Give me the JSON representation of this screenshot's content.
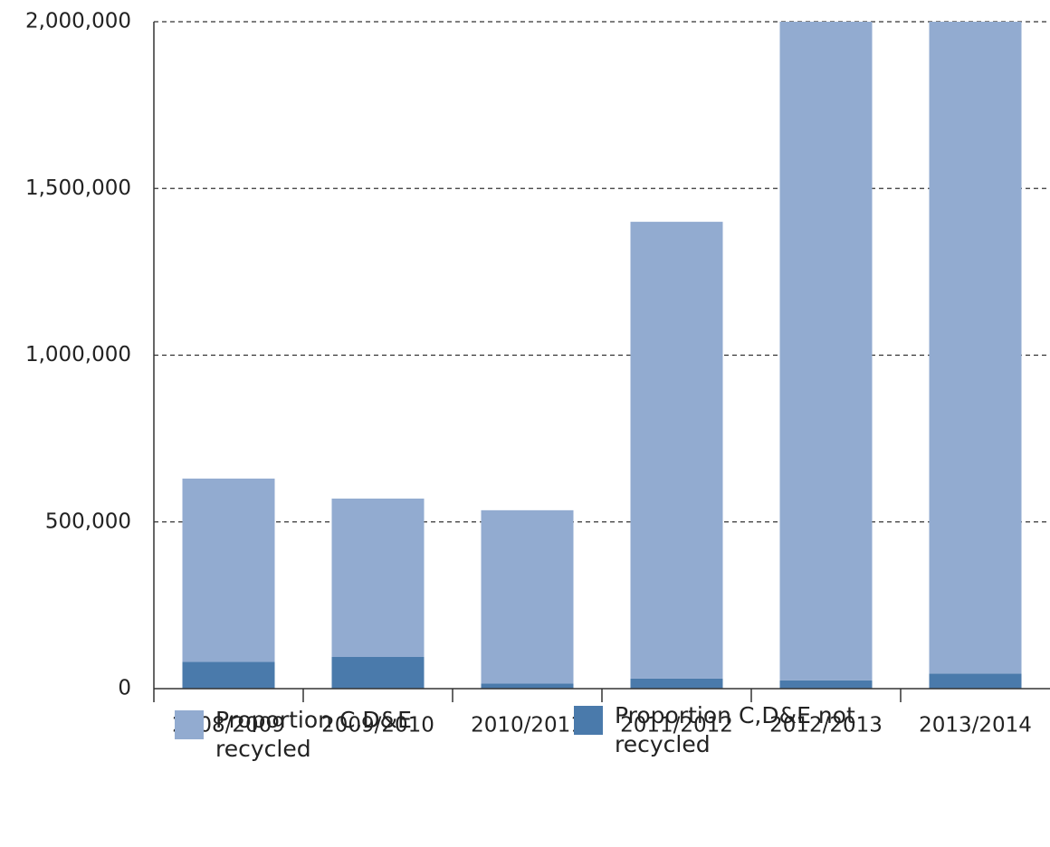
{
  "chart_data": {
    "type": "stacked_bar",
    "categories": [
      "2008/2009",
      "2009/2010",
      "2010/2011",
      "2011/2012",
      "2012/2013",
      "2013/2014"
    ],
    "series": [
      {
        "name": "Proportion C,D&E recycled",
        "color": "#92abd0",
        "values": [
          550000,
          475000,
          520000,
          1370000,
          1975000,
          1955000
        ]
      },
      {
        "name": "Proportion C,D&E not recycled",
        "color": "#4a7aab",
        "values": [
          80000,
          95000,
          15000,
          30000,
          25000,
          45000
        ]
      }
    ],
    "ylim": [
      0,
      2000000
    ],
    "yticks": [
      0,
      {
        "value": 500000,
        "label": "500,000"
      },
      {
        "value": 1000000,
        "label": "1,000,000"
      },
      {
        "value": 1500000,
        "label": "1,500,000"
      },
      {
        "value": 2000000,
        "label": "2,000,000"
      }
    ],
    "grid": true
  }
}
